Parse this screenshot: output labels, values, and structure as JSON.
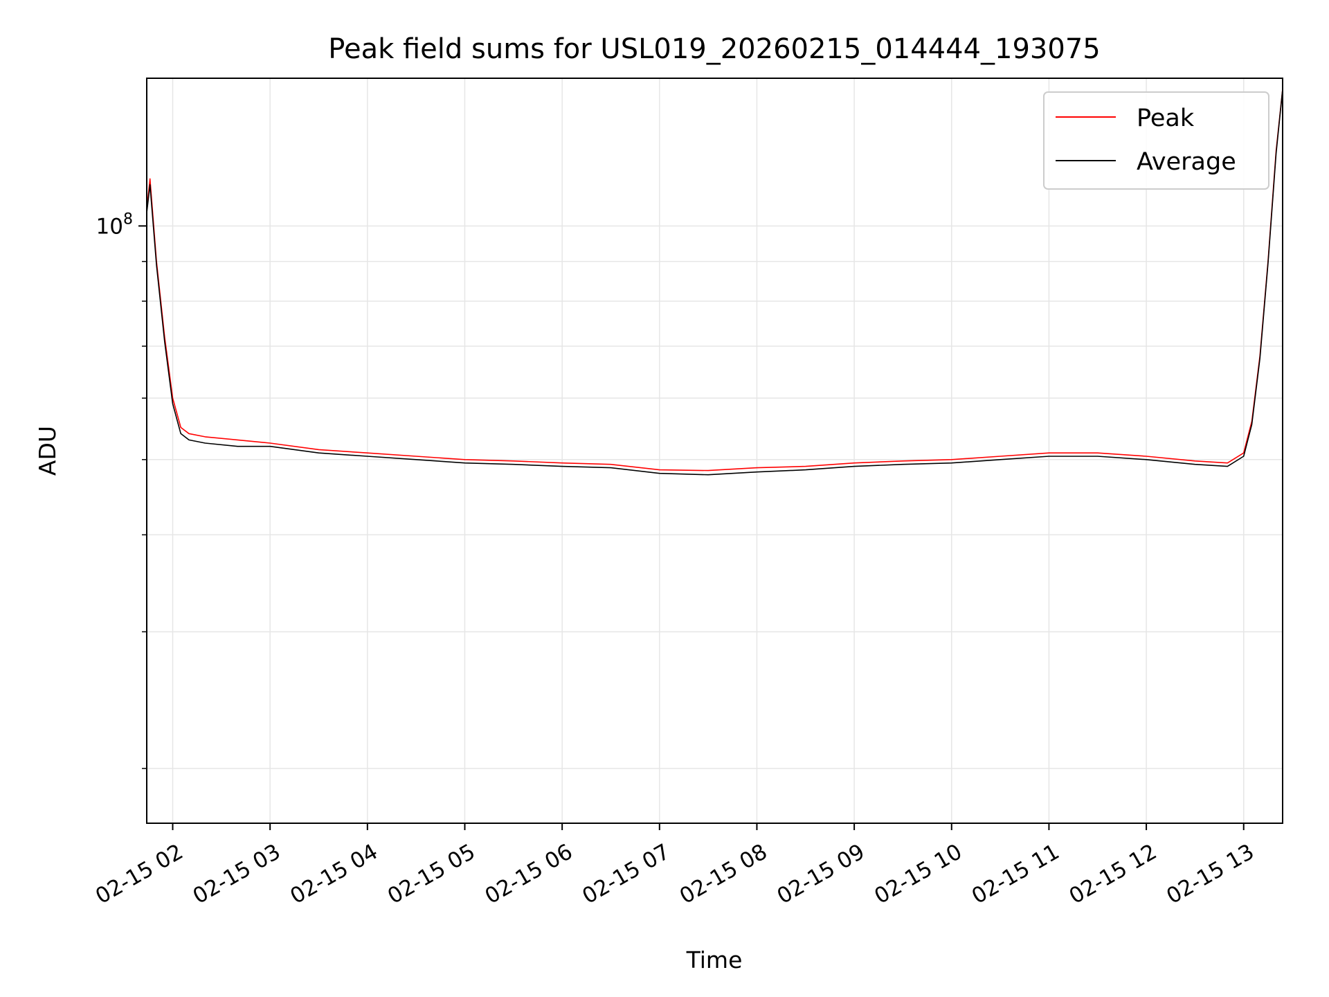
{
  "chart_data": {
    "type": "line",
    "title": "Peak field sums for USL019_20260215_014444_193075",
    "xlabel": "Time",
    "ylabel": "ADU",
    "x_ticks": [
      "02-15 02",
      "02-15 03",
      "02-15 04",
      "02-15 05",
      "02-15 06",
      "02-15 07",
      "02-15 08",
      "02-15 09",
      "02-15 10",
      "02-15 11",
      "02-15 12",
      "02-15 13"
    ],
    "y_ticks": [
      {
        "label_base": "10",
        "label_exp": "8",
        "value": 100000000
      }
    ],
    "xlim": [
      "2026-02-15T01:44",
      "2026-02-15T13:24"
    ],
    "ylim": [
      17000000,
      155000000
    ],
    "y_scale": "log",
    "grid": true,
    "legend": {
      "position": "top-right",
      "entries": [
        "Peak",
        "Average"
      ]
    },
    "series": [
      {
        "name": "Peak",
        "color": "#ff0000",
        "x": [
          "2026-02-15T01:44",
          "2026-02-15T01:46",
          "2026-02-15T01:50",
          "2026-02-15T01:55",
          "2026-02-15T02:00",
          "2026-02-15T02:05",
          "2026-02-15T02:10",
          "2026-02-15T02:20",
          "2026-02-15T02:40",
          "2026-02-15T03:00",
          "2026-02-15T03:30",
          "2026-02-15T04:00",
          "2026-02-15T04:30",
          "2026-02-15T05:00",
          "2026-02-15T05:30",
          "2026-02-15T06:00",
          "2026-02-15T06:30",
          "2026-02-15T07:00",
          "2026-02-15T07:30",
          "2026-02-15T08:00",
          "2026-02-15T08:30",
          "2026-02-15T09:00",
          "2026-02-15T09:30",
          "2026-02-15T10:00",
          "2026-02-15T10:30",
          "2026-02-15T11:00",
          "2026-02-15T11:30",
          "2026-02-15T12:00",
          "2026-02-15T12:30",
          "2026-02-15T12:50",
          "2026-02-15T13:00",
          "2026-02-15T13:05",
          "2026-02-15T13:10",
          "2026-02-15T13:15",
          "2026-02-15T13:20",
          "2026-02-15T13:24"
        ],
        "y": [
          105000000,
          115000000,
          90000000,
          72000000,
          60000000,
          55000000,
          54000000,
          53500000,
          53000000,
          52500000,
          51500000,
          51000000,
          50500000,
          50000000,
          49800000,
          49500000,
          49300000,
          48500000,
          48400000,
          48800000,
          49000000,
          49500000,
          49800000,
          50000000,
          50500000,
          51000000,
          51000000,
          50500000,
          49800000,
          49500000,
          51000000,
          56000000,
          68000000,
          90000000,
          125000000,
          150000000
        ]
      },
      {
        "name": "Average",
        "color": "#000000",
        "x": [
          "2026-02-15T01:44",
          "2026-02-15T01:46",
          "2026-02-15T01:50",
          "2026-02-15T01:55",
          "2026-02-15T02:00",
          "2026-02-15T02:05",
          "2026-02-15T02:10",
          "2026-02-15T02:20",
          "2026-02-15T02:40",
          "2026-02-15T03:00",
          "2026-02-15T03:30",
          "2026-02-15T04:00",
          "2026-02-15T04:30",
          "2026-02-15T05:00",
          "2026-02-15T05:30",
          "2026-02-15T06:00",
          "2026-02-15T06:30",
          "2026-02-15T07:00",
          "2026-02-15T07:30",
          "2026-02-15T08:00",
          "2026-02-15T08:30",
          "2026-02-15T09:00",
          "2026-02-15T09:30",
          "2026-02-15T10:00",
          "2026-02-15T10:30",
          "2026-02-15T11:00",
          "2026-02-15T11:30",
          "2026-02-15T12:00",
          "2026-02-15T12:30",
          "2026-02-15T12:50",
          "2026-02-15T13:00",
          "2026-02-15T13:05",
          "2026-02-15T13:10",
          "2026-02-15T13:15",
          "2026-02-15T13:20",
          "2026-02-15T13:24"
        ],
        "y": [
          104000000,
          113000000,
          89000000,
          71000000,
          59000000,
          54000000,
          53000000,
          52500000,
          52000000,
          52000000,
          51000000,
          50500000,
          50000000,
          49500000,
          49300000,
          49000000,
          48800000,
          48000000,
          47800000,
          48200000,
          48500000,
          49000000,
          49300000,
          49500000,
          50000000,
          50500000,
          50500000,
          50000000,
          49300000,
          49000000,
          50500000,
          55500000,
          67500000,
          89500000,
          124000000,
          150000000
        ]
      }
    ]
  }
}
